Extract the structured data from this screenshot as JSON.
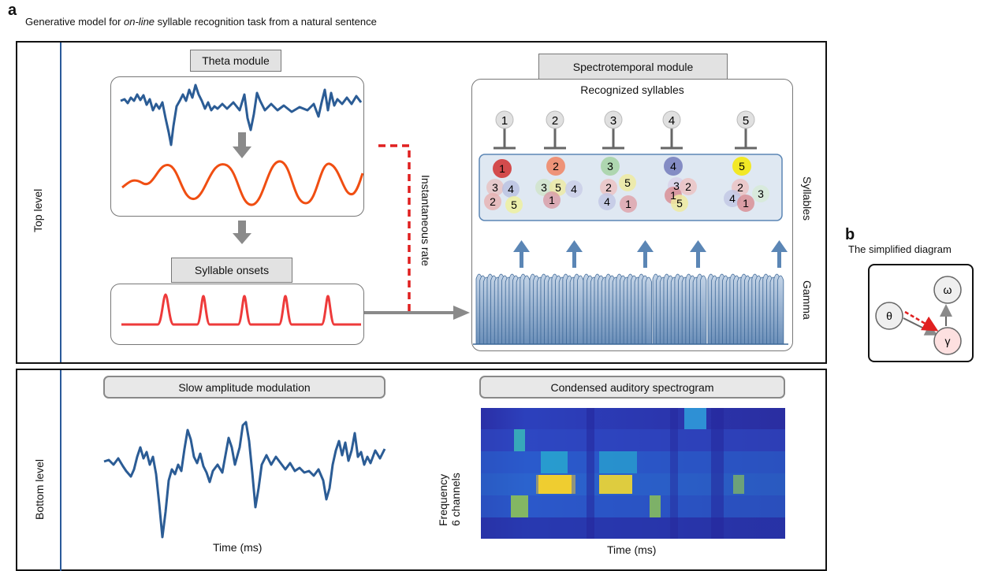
{
  "panel_a": {
    "letter": "a",
    "caption_pre": "Generative model for ",
    "caption_em": "on-line",
    "caption_post": " syllable recognition task from a natural sentence"
  },
  "top_level": {
    "label": "Top level",
    "theta_module": "Theta module",
    "syllable_onsets": "Syllable onsets",
    "instantaneous_rate": "Instantaneous rate",
    "spectrotemporal_module": "Spectrotemporal module",
    "recognized_syllables": "Recognized syllables",
    "recognized_ids": [
      "1",
      "2",
      "3",
      "4",
      "5"
    ],
    "syllables_label": "Syllables",
    "gamma_label": "Gamma",
    "syllable_clusters": [
      {
        "top": "1",
        "rest": [
          "3",
          "4",
          "2",
          "5"
        ]
      },
      {
        "top": "2",
        "rest": [
          "3",
          "5",
          "4",
          "1"
        ]
      },
      {
        "top": "3",
        "rest": [
          "2",
          "5",
          "4",
          "1"
        ]
      },
      {
        "top": "4",
        "rest": [
          "3",
          "2",
          "1",
          "5"
        ]
      },
      {
        "top": "5",
        "rest": [
          "2",
          "4",
          "3",
          "1"
        ]
      }
    ]
  },
  "bottom_level": {
    "label": "Bottom level",
    "slow_am": "Slow amplitude modulation",
    "spectrogram": "Condensed auditory spectrogram",
    "time_left": "Time (ms)",
    "time_right": "Time (ms)",
    "freq_line1": "Frequency",
    "freq_line2": "6 channels"
  },
  "panel_b": {
    "letter": "b",
    "caption": "The simplified diagram",
    "nodes": {
      "theta": "θ",
      "omega": "ω",
      "gamma": "γ"
    }
  },
  "colors": {
    "signal_blue": "#2b5c95",
    "theta_orange": "#f04e12",
    "onset_red": "#ee3a3a",
    "dashed_red": "#e02020",
    "arrow_blue": "#5b86b5"
  }
}
